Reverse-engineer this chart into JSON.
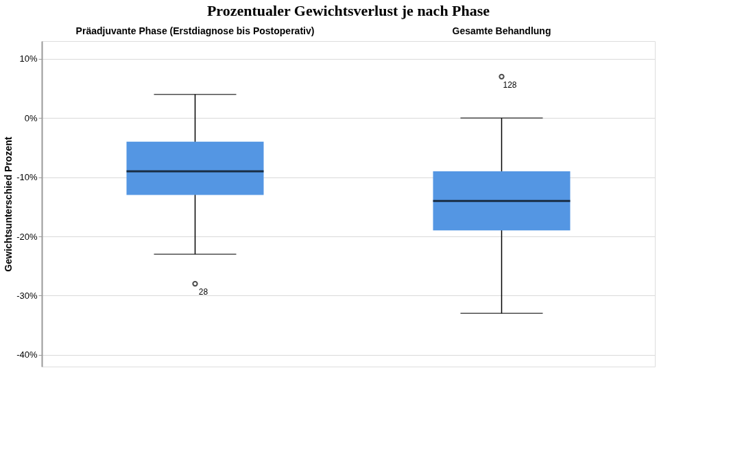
{
  "chart_data": {
    "type": "box",
    "title": "Prozentualer Gewichtsverlust je nach Phase",
    "ylabel": "Gewichtsunterschied Prozent",
    "categories": [
      "Präadjuvante Phase (Erstdiagnose bis Postoperativ)",
      "Gesamte Behandlung"
    ],
    "series": [
      {
        "color": "#5496e3",
        "boxes": [
          {
            "low": -23,
            "q1": -13,
            "median": -9,
            "q3": -4,
            "high": 4,
            "outliers": [
              -28
            ]
          },
          {
            "low": -33,
            "q1": -19,
            "median": -14,
            "q3": -9,
            "high": 0,
            "outliers": [
              7
            ]
          }
        ]
      }
    ],
    "ylim": [
      -42,
      13
    ],
    "yticks": [
      {
        "value": 10,
        "label": "10%"
      },
      {
        "value": 0,
        "label": "0%"
      },
      {
        "value": -10,
        "label": "-10%"
      },
      {
        "value": -20,
        "label": "-20%"
      },
      {
        "value": -30,
        "label": "-30%"
      },
      {
        "value": -40,
        "label": "-40%"
      }
    ],
    "grid": "y",
    "annotations": [
      "28",
      "128"
    ]
  }
}
